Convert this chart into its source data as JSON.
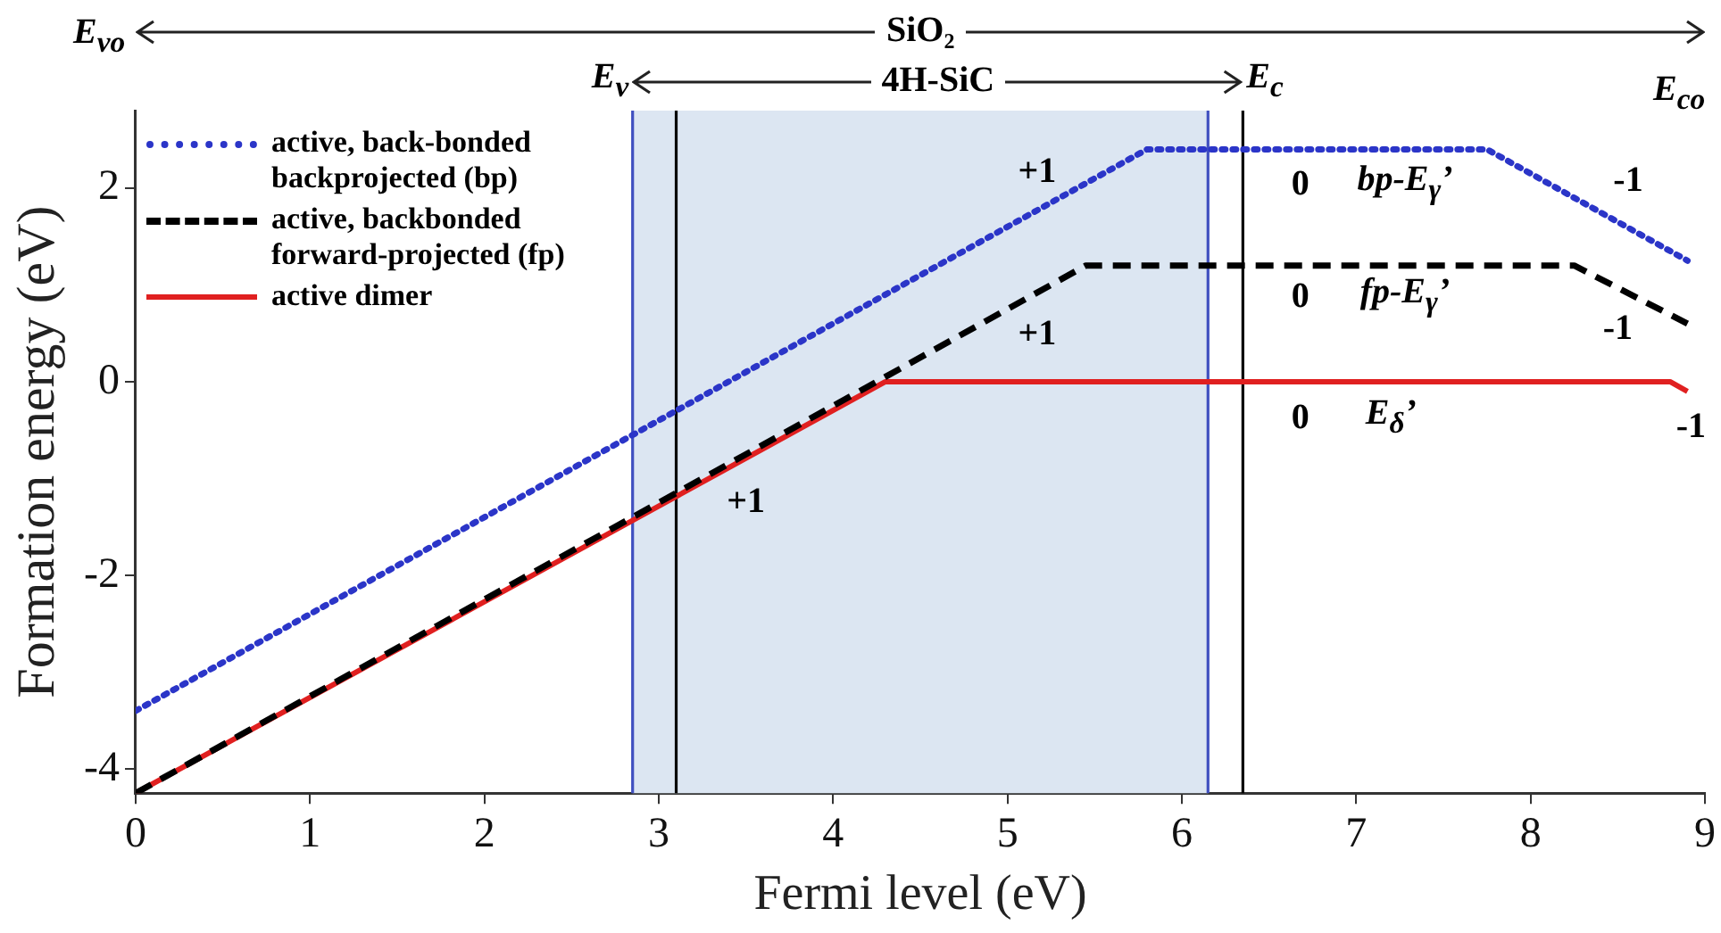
{
  "chart_data": {
    "type": "line",
    "xlabel": "Fermi level (eV)",
    "ylabel": "Formation energy (eV)",
    "series": [
      {
        "name": "active, back-bonded backprojected (bp)",
        "color": "#2b35c8",
        "line_style": "dotted",
        "x": [
          0,
          5.8,
          7.75,
          8.9
        ],
        "values": [
          -3.4,
          2.4,
          2.4,
          1.25
        ]
      },
      {
        "name": "active, backbonded forward-projected (fp)",
        "color": "#000000",
        "line_style": "dashed",
        "x": [
          0,
          5.45,
          8.25,
          8.9
        ],
        "values": [
          -4.25,
          1.2,
          1.2,
          0.6
        ]
      },
      {
        "name": "active dimer",
        "color": "#e02020",
        "line_style": "solid",
        "x": [
          0,
          4.3,
          8.8,
          8.9
        ],
        "values": [
          -4.25,
          0,
          0,
          -0.1
        ]
      }
    ],
    "xlim": [
      0,
      9
    ],
    "xticks": [
      0,
      1,
      2,
      3,
      4,
      5,
      6,
      7,
      8,
      9
    ],
    "ylim": [
      -4.25,
      2.8
    ],
    "yticks": [
      -4,
      -2,
      0,
      2
    ],
    "grid": false,
    "legend": "top left",
    "marker": "none",
    "ref_lines": [
      {
        "axis": "x",
        "value": 2.85,
        "label": "E$_{v}$",
        "color": "#4050c0"
      },
      {
        "axis": "x",
        "value": 3.1,
        "color": "#000000"
      },
      {
        "axis": "x",
        "value": 6.15,
        "color": "#4050c0"
      },
      {
        "axis": "x",
        "value": 6.35,
        "label": "E$_{c}$",
        "color": "#000000"
      }
    ],
    "bands": [
      {
        "axis": "x",
        "from": 2.85,
        "to": 6.15,
        "label": "4H-SiC",
        "color": "#dce6f2"
      }
    ],
    "annotations": [
      "E$_{vo}$",
      "SiO₂",
      "E$_{co}$",
      "+1",
      "+1",
      "+1",
      "0",
      "0",
      "0",
      "bp-E$_{γ}$’",
      "fp-E$_{γ}$’",
      "E$_{δ}$’",
      "-1",
      "-1",
      "-1"
    ]
  }
}
